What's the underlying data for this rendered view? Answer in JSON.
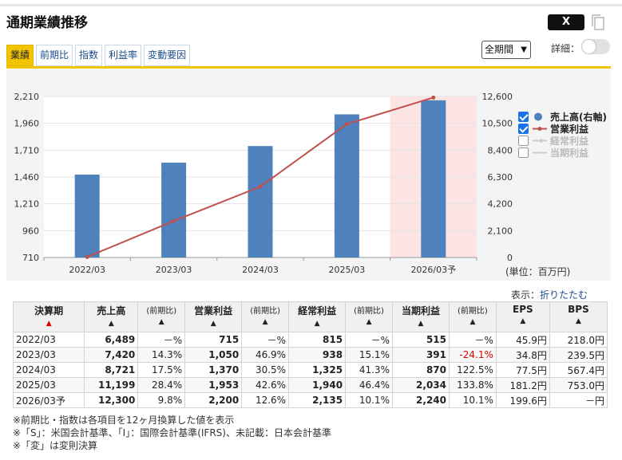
{
  "header": {
    "title": "通期業績推移",
    "x_label": "X",
    "tabs": [
      "業績",
      "前期比",
      "指数",
      "利益率",
      "変動要因"
    ],
    "period_select": "全期間",
    "detail_label": "詳細："
  },
  "colors": {
    "accent": "#f2c500",
    "bar": "#4f81bd",
    "line": "#c0504d",
    "forecast_bg": "#fce4e4"
  },
  "chart_data": {
    "type": "bar",
    "categories": [
      "2022/03",
      "2023/03",
      "2024/03",
      "2025/03",
      "2026/03予"
    ],
    "series": [
      {
        "name": "売上高(右軸)",
        "type": "bar",
        "axis": "right",
        "values": [
          6489,
          7420,
          8721,
          11199,
          12300
        ]
      },
      {
        "name": "営業利益",
        "type": "line",
        "axis": "left",
        "values": [
          715,
          1050,
          1370,
          1953,
          2200
        ]
      }
    ],
    "y_left_ticks": [
      "2,210",
      "1,960",
      "1,710",
      "1,460",
      "1,210",
      "960",
      "710"
    ],
    "y_left_range": [
      710,
      2210
    ],
    "y_right_ticks": [
      "12,600",
      "10,500",
      "8,400",
      "6,300",
      "4,200",
      "2,100",
      "0"
    ],
    "y_right_range": [
      0,
      12600
    ],
    "forecast_index": 4,
    "legend": [
      {
        "label": "売上高(右軸)",
        "checked": true
      },
      {
        "label": "営業利益",
        "checked": true
      },
      {
        "label": "経常利益",
        "checked": false
      },
      {
        "label": "当期利益",
        "checked": false
      }
    ],
    "legend_position": "right",
    "unit_note": "(単位：百万円)"
  },
  "display": {
    "label": "表示：",
    "link": "折りたたむ"
  },
  "table": {
    "headers": [
      "決算期",
      "売上高",
      "(前期比)",
      "営業利益",
      "(前期比)",
      "経常利益",
      "(前期比)",
      "当期利益",
      "(前期比)",
      "EPS",
      "BPS"
    ],
    "sort_marks": [
      "▲",
      "▲",
      "▲",
      "▲",
      "▲",
      "▲",
      "▲",
      "▲",
      "▲",
      "▲",
      "▲"
    ],
    "rows": [
      [
        "2022/03",
        "6,489",
        "－%",
        "715",
        "－%",
        "815",
        "－%",
        "515",
        "－%",
        "45.9円",
        "218.0円"
      ],
      [
        "2023/03",
        "7,420",
        "14.3%",
        "1,050",
        "46.9%",
        "938",
        "15.1%",
        "391",
        "-24.1%",
        "34.8円",
        "239.5円"
      ],
      [
        "2024/03",
        "8,721",
        "17.5%",
        "1,370",
        "30.5%",
        "1,325",
        "41.3%",
        "870",
        "122.5%",
        "77.5円",
        "567.4円"
      ],
      [
        "2025/03",
        "11,199",
        "28.4%",
        "1,953",
        "42.6%",
        "1,940",
        "46.4%",
        "2,034",
        "133.8%",
        "181.2円",
        "753.0円"
      ],
      [
        "2026/03予",
        "12,300",
        "9.8%",
        "2,200",
        "12.6%",
        "2,135",
        "10.1%",
        "2,240",
        "10.1%",
        "199.6円",
        "－円"
      ]
    ]
  },
  "notes": [
    "※前期比・指数は各項目を12ヶ月換算した値を表示",
    "※「S」：米国会計基準、「I」：国際会計基準(IFRS)、未記載：日本会計基準",
    "※「変」は変則決算"
  ]
}
